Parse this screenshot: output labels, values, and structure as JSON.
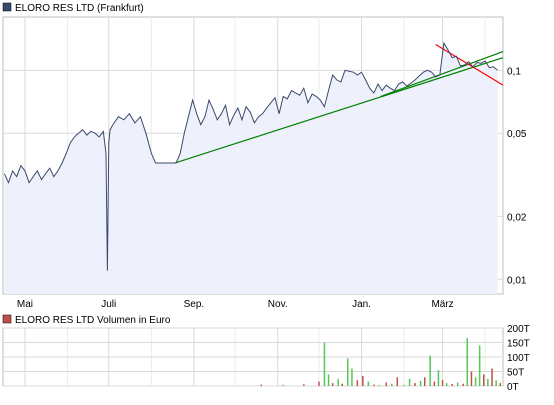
{
  "chart_data": [
    {
      "type": "area",
      "title": "ELORO RES LTD (Frankfurt)",
      "legend_color": "#3a4a6b",
      "line_color": "#3a4a6b",
      "fill_color": "#eef0fb",
      "y_scale": "log",
      "ylim": [
        0.0085,
        0.18
      ],
      "y_ticks": [
        {
          "value": 0.01,
          "label": "0,01"
        },
        {
          "value": 0.02,
          "label": "0,02"
        },
        {
          "value": 0.05,
          "label": "0,05"
        },
        {
          "value": 0.1,
          "label": "0,1"
        }
      ],
      "x_range": [
        "2008-04-15",
        "2009-04-14"
      ],
      "x_ticks": [
        {
          "date": "2008-05-01",
          "label": "Mai"
        },
        {
          "date": "2008-07-01",
          "label": "Juli"
        },
        {
          "date": "2008-09-01",
          "label": "Sep."
        },
        {
          "date": "2008-11-01",
          "label": "Nov."
        },
        {
          "date": "2009-01-01",
          "label": "Jan."
        },
        {
          "date": "2009-03-01",
          "label": "März"
        }
      ],
      "grid": true,
      "series": [
        {
          "x": [
            "2008-04-16",
            "2008-04-19",
            "2008-04-22",
            "2008-04-25",
            "2008-04-28",
            "2008-05-01",
            "2008-05-04",
            "2008-05-07",
            "2008-05-10",
            "2008-05-13",
            "2008-05-16",
            "2008-05-19",
            "2008-05-22",
            "2008-05-25",
            "2008-05-28",
            "2008-05-31",
            "2008-06-03",
            "2008-06-06",
            "2008-06-09",
            "2008-06-12",
            "2008-06-15",
            "2008-06-18",
            "2008-06-21",
            "2008-06-24",
            "2008-06-27",
            "2008-06-29",
            "2008-06-30",
            "2008-07-01",
            "2008-07-02",
            "2008-07-04",
            "2008-07-08",
            "2008-07-12",
            "2008-07-16",
            "2008-07-20",
            "2008-07-24",
            "2008-07-28",
            "2008-08-01",
            "2008-08-04",
            "2008-08-07",
            "2008-08-10",
            "2008-08-13",
            "2008-08-16",
            "2008-08-19",
            "2008-08-22",
            "2008-08-25",
            "2008-08-28",
            "2008-08-31",
            "2008-09-03",
            "2008-09-06",
            "2008-09-09",
            "2008-09-12",
            "2008-09-15",
            "2008-09-18",
            "2008-09-21",
            "2008-09-24",
            "2008-09-27",
            "2008-09-30",
            "2008-10-03",
            "2008-10-06",
            "2008-10-09",
            "2008-10-12",
            "2008-10-15",
            "2008-10-18",
            "2008-10-21",
            "2008-10-24",
            "2008-10-27",
            "2008-10-30",
            "2008-11-02",
            "2008-11-05",
            "2008-11-08",
            "2008-11-11",
            "2008-11-14",
            "2008-11-17",
            "2008-11-20",
            "2008-11-23",
            "2008-11-26",
            "2008-11-29",
            "2008-12-02",
            "2008-12-05",
            "2008-12-08",
            "2008-12-11",
            "2008-12-14",
            "2008-12-17",
            "2008-12-20",
            "2008-12-23",
            "2008-12-26",
            "2008-12-29",
            "2009-01-01",
            "2009-01-04",
            "2009-01-07",
            "2009-01-10",
            "2009-01-13",
            "2009-01-16",
            "2009-01-19",
            "2009-01-22",
            "2009-01-25",
            "2009-01-28",
            "2009-01-31",
            "2009-02-03",
            "2009-02-06",
            "2009-02-09",
            "2009-02-12",
            "2009-02-15",
            "2009-02-18",
            "2009-02-21",
            "2009-02-24",
            "2009-02-27",
            "2009-03-02",
            "2009-03-05",
            "2009-03-08",
            "2009-03-11",
            "2009-03-14",
            "2009-03-17",
            "2009-03-20",
            "2009-03-23",
            "2009-03-26",
            "2009-03-29",
            "2009-04-01",
            "2009-04-04",
            "2009-04-07",
            "2009-04-10"
          ],
          "y": [
            0.032,
            0.029,
            0.033,
            0.031,
            0.035,
            0.033,
            0.029,
            0.031,
            0.033,
            0.03,
            0.032,
            0.034,
            0.031,
            0.033,
            0.036,
            0.04,
            0.045,
            0.048,
            0.05,
            0.052,
            0.049,
            0.051,
            0.05,
            0.048,
            0.051,
            0.04,
            0.011,
            0.045,
            0.052,
            0.055,
            0.06,
            0.058,
            0.062,
            0.056,
            0.06,
            0.05,
            0.04,
            0.036,
            0.036,
            0.036,
            0.036,
            0.036,
            0.036,
            0.04,
            0.05,
            0.06,
            0.072,
            0.062,
            0.055,
            0.06,
            0.072,
            0.065,
            0.058,
            0.062,
            0.068,
            0.055,
            0.061,
            0.066,
            0.058,
            0.067,
            0.063,
            0.056,
            0.06,
            0.062,
            0.066,
            0.07,
            0.074,
            0.062,
            0.075,
            0.073,
            0.08,
            0.078,
            0.076,
            0.082,
            0.07,
            0.077,
            0.075,
            0.072,
            0.067,
            0.08,
            0.095,
            0.09,
            0.088,
            0.1,
            0.099,
            0.098,
            0.095,
            0.098,
            0.09,
            0.082,
            0.078,
            0.086,
            0.08,
            0.085,
            0.082,
            0.08,
            0.086,
            0.088,
            0.084,
            0.087,
            0.09,
            0.094,
            0.098,
            0.1,
            0.098,
            0.093,
            0.095,
            0.135,
            0.125,
            0.115,
            0.117,
            0.105,
            0.106,
            0.11,
            0.104,
            0.109,
            0.108,
            0.111,
            0.103,
            0.104,
            0.1
          ]
        }
      ],
      "trend_lines": [
        {
          "color": "#008000",
          "points": [
            [
              "2008-08-18",
              0.036
            ],
            [
              "2009-04-14",
              0.115
            ]
          ]
        },
        {
          "color": "#008000",
          "points": [
            [
              "2009-01-15",
              0.075
            ],
            [
              "2009-04-14",
              0.123
            ]
          ]
        },
        {
          "color": "#ff0000",
          "points": [
            [
              "2009-02-24",
              0.133
            ],
            [
              "2009-04-14",
              0.085
            ]
          ]
        }
      ]
    },
    {
      "type": "bar",
      "title": "ELORO RES LTD Volumen in Euro",
      "legend_color": "#c0504d",
      "bar_colors": [
        "#55c855",
        "#c0504d"
      ],
      "ylim": [
        0,
        200000
      ],
      "y_ticks": [
        {
          "value": 0,
          "label": "0T"
        },
        {
          "value": 50000,
          "label": "50T"
        },
        {
          "value": 100000,
          "label": "100T"
        },
        {
          "value": 150000,
          "label": "150T"
        },
        {
          "value": 200000,
          "label": "200T"
        }
      ],
      "grid": true,
      "bars": [
        {
          "date": "2008-10-20",
          "value": 5000,
          "c": 1
        },
        {
          "date": "2008-11-05",
          "value": 4000,
          "c": 0
        },
        {
          "date": "2008-11-20",
          "value": 6000,
          "c": 1
        },
        {
          "date": "2008-12-01",
          "value": 15000,
          "c": 1
        },
        {
          "date": "2008-12-05",
          "value": 150000,
          "c": 0
        },
        {
          "date": "2008-12-08",
          "value": 40000,
          "c": 0
        },
        {
          "date": "2008-12-11",
          "value": 10000,
          "c": 1
        },
        {
          "date": "2008-12-15",
          "value": 25000,
          "c": 0
        },
        {
          "date": "2008-12-18",
          "value": 8000,
          "c": 1
        },
        {
          "date": "2008-12-22",
          "value": 95000,
          "c": 0
        },
        {
          "date": "2008-12-25",
          "value": 60000,
          "c": 0
        },
        {
          "date": "2008-12-29",
          "value": 20000,
          "c": 1
        },
        {
          "date": "2009-01-02",
          "value": 35000,
          "c": 1
        },
        {
          "date": "2009-01-06",
          "value": 15000,
          "c": 0
        },
        {
          "date": "2009-01-10",
          "value": 5000,
          "c": 1
        },
        {
          "date": "2009-01-14",
          "value": 3000,
          "c": 0
        },
        {
          "date": "2009-01-19",
          "value": 12000,
          "c": 1
        },
        {
          "date": "2009-01-23",
          "value": 8000,
          "c": 0
        },
        {
          "date": "2009-01-27",
          "value": 30000,
          "c": 1
        },
        {
          "date": "2009-02-01",
          "value": 4000,
          "c": 0
        },
        {
          "date": "2009-02-05",
          "value": 25000,
          "c": 0
        },
        {
          "date": "2009-02-09",
          "value": 10000,
          "c": 1
        },
        {
          "date": "2009-02-13",
          "value": 18000,
          "c": 0
        },
        {
          "date": "2009-02-16",
          "value": 30000,
          "c": 1
        },
        {
          "date": "2009-02-20",
          "value": 105000,
          "c": 0
        },
        {
          "date": "2009-02-23",
          "value": 15000,
          "c": 1
        },
        {
          "date": "2009-02-26",
          "value": 55000,
          "c": 0
        },
        {
          "date": "2009-03-01",
          "value": 20000,
          "c": 1
        },
        {
          "date": "2009-03-04",
          "value": 10000,
          "c": 0
        },
        {
          "date": "2009-03-08",
          "value": 7000,
          "c": 1
        },
        {
          "date": "2009-03-12",
          "value": 12000,
          "c": 0
        },
        {
          "date": "2009-03-16",
          "value": 8000,
          "c": 1
        },
        {
          "date": "2009-03-19",
          "value": 165000,
          "c": 0
        },
        {
          "date": "2009-03-22",
          "value": 50000,
          "c": 1
        },
        {
          "date": "2009-03-25",
          "value": 30000,
          "c": 0
        },
        {
          "date": "2009-03-28",
          "value": 140000,
          "c": 0
        },
        {
          "date": "2009-03-31",
          "value": 40000,
          "c": 1
        },
        {
          "date": "2009-04-03",
          "value": 25000,
          "c": 0
        },
        {
          "date": "2009-04-06",
          "value": 60000,
          "c": 1
        },
        {
          "date": "2009-04-09",
          "value": 20000,
          "c": 0
        },
        {
          "date": "2009-04-12",
          "value": 10000,
          "c": 1
        }
      ]
    }
  ]
}
